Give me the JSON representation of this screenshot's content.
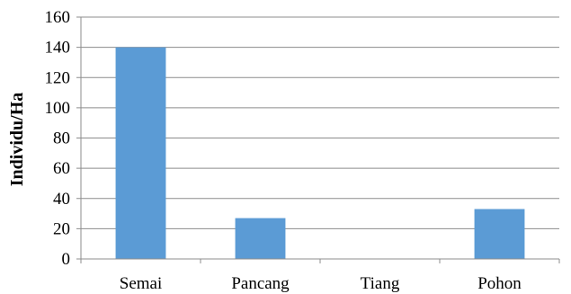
{
  "chart_data": {
    "type": "bar",
    "title": "",
    "xlabel": "",
    "ylabel": "Individu/Ha",
    "categories": [
      "Semai",
      "Pancang",
      "Tiang",
      "Pohon"
    ],
    "values": [
      140,
      27,
      0,
      33
    ],
    "ylim": [
      0,
      160
    ],
    "yticks": [
      0,
      20,
      40,
      60,
      80,
      100,
      120,
      140,
      160
    ],
    "grid": true,
    "legend": "none",
    "bar_color": "#5b9bd5"
  }
}
